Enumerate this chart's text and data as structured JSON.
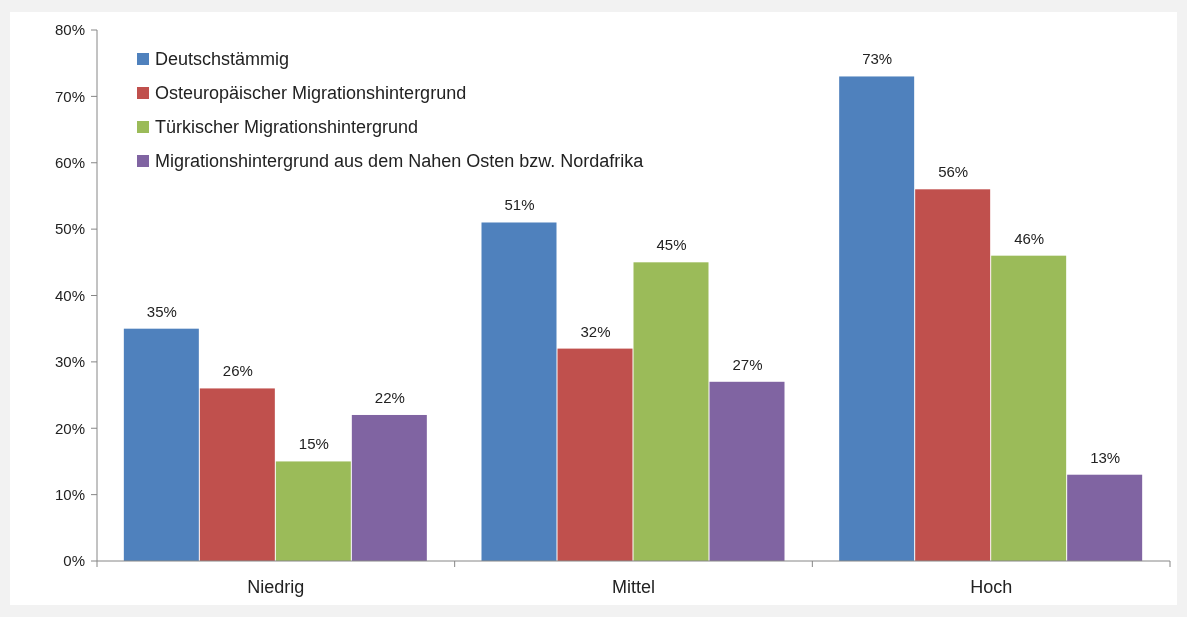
{
  "chart_data": {
    "type": "bar",
    "categories": [
      "Niedrig",
      "Mittel",
      "Hoch"
    ],
    "series": [
      {
        "name": "Deutschstämmig",
        "color": "#4f81bd",
        "values": [
          35,
          51,
          73
        ],
        "value_labels": [
          "35%",
          "51%",
          "73%"
        ]
      },
      {
        "name": "Osteuropäischer Migrationshintergrund",
        "color": "#c0504d",
        "values": [
          26,
          32,
          56
        ],
        "value_labels": [
          "26%",
          "32%",
          "56%"
        ]
      },
      {
        "name": "Türkischer Migrationshintergrund",
        "color": "#9bbb59",
        "values": [
          15,
          45,
          46
        ],
        "value_labels": [
          "15%",
          "45%",
          "46%"
        ]
      },
      {
        "name": "Migrationshintergrund aus dem Nahen Osten bzw. Nordafrika",
        "color": "#8064a2",
        "values": [
          22,
          27,
          13
        ],
        "value_labels": [
          "22%",
          "27%",
          "13%"
        ]
      }
    ],
    "ylim": [
      0,
      80
    ],
    "yticks": [
      {
        "value": 0,
        "label": "0%"
      },
      {
        "value": 10,
        "label": "10%"
      },
      {
        "value": 20,
        "label": "20%"
      },
      {
        "value": 30,
        "label": "30%"
      },
      {
        "value": 40,
        "label": "40%"
      },
      {
        "value": 50,
        "label": "50%"
      },
      {
        "value": 60,
        "label": "60%"
      },
      {
        "value": 70,
        "label": "70%"
      },
      {
        "value": 80,
        "label": "80%"
      }
    ],
    "grid": false,
    "legend": "top left"
  }
}
